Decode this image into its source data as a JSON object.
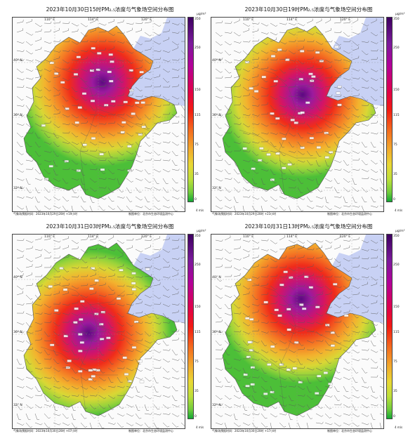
{
  "figure": {
    "panels": [
      {
        "title": "2023年10月30日15时PM₂.₅浓度与气象场空间分布图",
        "footnote_left": "气象场预报时间：2023年10月29日20时 +19小时",
        "footnote_right": "制图单位：北京市生态环境监测中心",
        "hotspot": "north-center"
      },
      {
        "title": "2023年10月30日19时PM₂.₅浓度与气象场空间分布图",
        "footnote_left": "气象场预报时间：2023年10月29日20时 +23小时",
        "footnote_right": "制图单位：北京市生态环境监测中心",
        "hotspot": "central"
      },
      {
        "title": "2023年10月31日03时PM₂.₅浓度与气象场空间分布图",
        "footnote_left": "气象场预报时间：2023年10月30日20时 +07小时",
        "footnote_right": "制图单位：北京市生态环境监测中心",
        "hotspot": "south-center"
      },
      {
        "title": "2023年10月31日13时PM₂.₅浓度与气象场空间分布图",
        "footnote_left": "气象场预报时间：2023年10月30日20时 +17小时",
        "footnote_right": "制图单位：北京市生态环境监测中心",
        "hotspot": "north-center"
      }
    ],
    "colorbar": {
      "unit": "μg/m³",
      "ticks": [
        "350",
        "250",
        "150",
        "115",
        "75",
        "35",
        "0"
      ],
      "colors": [
        "#3d0060",
        "#7a1a9b",
        "#b2009a",
        "#e0004a",
        "#f31a12",
        "#f46a1e",
        "#f3a72c",
        "#e9d834",
        "#bde03a",
        "#72cd3c",
        "#14a835"
      ]
    },
    "axes": {
      "lon_labels": [
        "110° E",
        "114° E",
        "120° E"
      ],
      "lat_labels": [
        "40° N",
        "36° N",
        "32° N"
      ]
    },
    "wind_unit": "4 m/s",
    "colors": {
      "sea": "#c8d1f4",
      "land_outside": "#ffffff",
      "barb": "#5a5a5a"
    }
  }
}
